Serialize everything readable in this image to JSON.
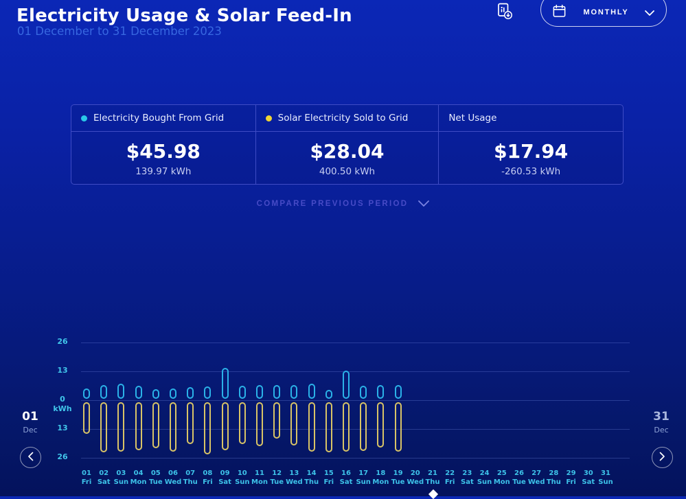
{
  "header": {
    "title": "Electricity Usage & Solar Feed-In",
    "subtitle": "01 December to 31 December 2023",
    "period_selector": {
      "label": "MONTHLY"
    }
  },
  "summary": {
    "columns": [
      {
        "label": "Electricity Bought From Grid",
        "dot_color": "#2ac8e8",
        "price": "$45.98",
        "energy": "139.97 kWh"
      },
      {
        "label": "Solar Electricity Sold to Grid",
        "dot_color": "#f0d534",
        "price": "$28.04",
        "energy": "400.50 kWh"
      },
      {
        "label": "Net Usage",
        "dot_color": null,
        "price": "$17.94",
        "energy": "-260.53 kWh"
      }
    ]
  },
  "compare": {
    "label": "COMPARE PREVIOUS PERIOD"
  },
  "pager": {
    "start": {
      "day": "01",
      "month": "Dec"
    },
    "end": {
      "day": "31",
      "month": "Dec"
    }
  },
  "chart_data": {
    "type": "bar",
    "ylabel": "kWh",
    "yticks": [
      26,
      13,
      0,
      -13,
      -26
    ],
    "ylim": [
      -26,
      26
    ],
    "grid": true,
    "legend_position": "table-header",
    "categories": [
      "01",
      "02",
      "03",
      "04",
      "05",
      "06",
      "07",
      "08",
      "09",
      "10",
      "11",
      "12",
      "13",
      "14",
      "15",
      "16",
      "17",
      "18",
      "19",
      "20",
      "21",
      "22",
      "23",
      "24",
      "25",
      "26",
      "27",
      "28",
      "29",
      "30",
      "31"
    ],
    "day_names": [
      "Fri",
      "Sat",
      "Sun",
      "Mon",
      "Tue",
      "Wed",
      "Thu",
      "Fri",
      "Sat",
      "Sun",
      "Mon",
      "Tue",
      "Wed",
      "Thu",
      "Fri",
      "Sat",
      "Sun",
      "Mon",
      "Tue",
      "Wed",
      "Thu",
      "Fri",
      "Sat",
      "Sun",
      "Mon",
      "Tue",
      "Wed",
      "Thu",
      "Fri",
      "Sat",
      "Sun"
    ],
    "series": [
      {
        "name": "Electricity Bought From Grid",
        "color": "#2bb2e8",
        "direction": "up",
        "unit": "kWh",
        "values": [
          4.6,
          6.3,
          6.7,
          5.8,
          4.2,
          4.6,
          5.2,
          5.5,
          13.9,
          6.0,
          6.3,
          6.3,
          6.3,
          6.7,
          4.1,
          12.7,
          5.8,
          6.3,
          6.3,
          null,
          null,
          null,
          null,
          null,
          null,
          null,
          null,
          null,
          null,
          null,
          null
        ]
      },
      {
        "name": "Solar Electricity Sold to Grid",
        "color": "#d9c466",
        "direction": "down",
        "unit": "kWh",
        "values": [
          14.1,
          22.7,
          22.4,
          21.7,
          20.8,
          22.4,
          19.0,
          23.4,
          21.7,
          19.0,
          19.8,
          16.5,
          19.6,
          22.4,
          22.7,
          22.2,
          21.9,
          20.3,
          22.4,
          null,
          null,
          null,
          null,
          null,
          null,
          null,
          null,
          null,
          null,
          null,
          null
        ]
      }
    ]
  }
}
